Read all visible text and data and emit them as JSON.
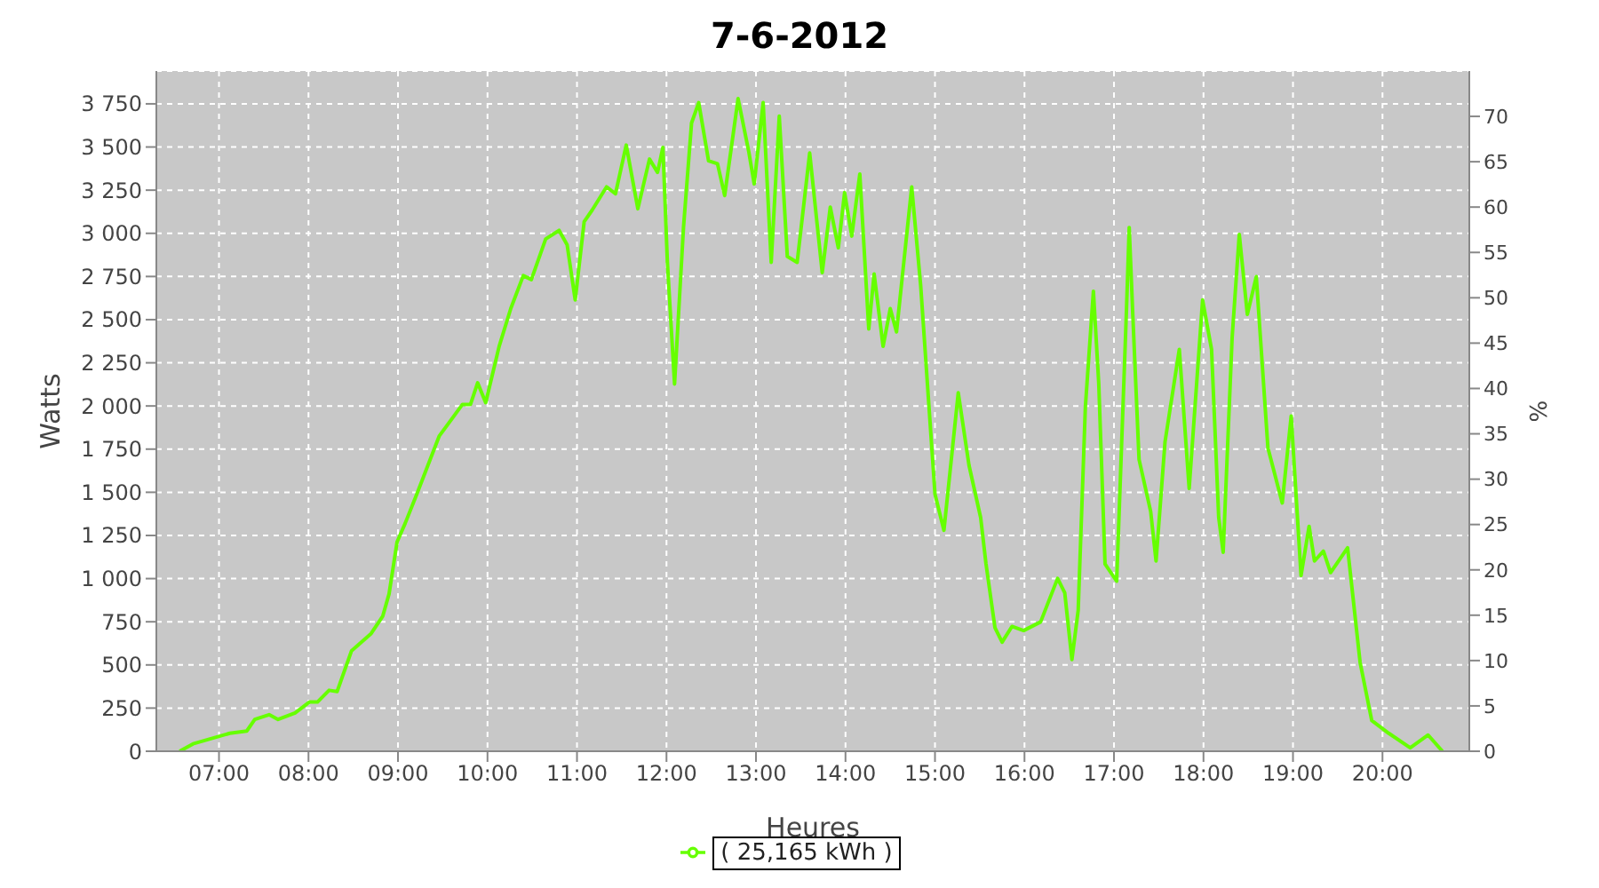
{
  "chart_data": {
    "type": "line",
    "title": "7-6-2012",
    "xlabel": "Heures",
    "ylabel": "Watts",
    "y2label": "%",
    "xlim": [
      6.3,
      20.97
    ],
    "ylim": [
      0,
      3940
    ],
    "y2lim": [
      0,
      75
    ],
    "xticks": [
      {
        "value": 7,
        "label": "07:00"
      },
      {
        "value": 8,
        "label": "08:00"
      },
      {
        "value": 9,
        "label": "09:00"
      },
      {
        "value": 10,
        "label": "10:00"
      },
      {
        "value": 11,
        "label": "11:00"
      },
      {
        "value": 12,
        "label": "12:00"
      },
      {
        "value": 13,
        "label": "13:00"
      },
      {
        "value": 14,
        "label": "14:00"
      },
      {
        "value": 15,
        "label": "15:00"
      },
      {
        "value": 16,
        "label": "16:00"
      },
      {
        "value": 17,
        "label": "17:00"
      },
      {
        "value": 18,
        "label": "18:00"
      },
      {
        "value": 19,
        "label": "19:00"
      },
      {
        "value": 20,
        "label": "20:00"
      }
    ],
    "yticks": [
      0,
      250,
      500,
      750,
      {
        "value": 1000,
        "label": "1 000"
      },
      {
        "value": 1250,
        "label": "1 250"
      },
      {
        "value": 1500,
        "label": "1 500"
      },
      {
        "value": 1750,
        "label": "1 750"
      },
      {
        "value": 2000,
        "label": "2 000"
      },
      {
        "value": 2250,
        "label": "2 250"
      },
      {
        "value": 2500,
        "label": "2 500"
      },
      {
        "value": 2750,
        "label": "2 750"
      },
      {
        "value": 3000,
        "label": "3 000"
      },
      {
        "value": 3250,
        "label": "3 250"
      },
      {
        "value": 3500,
        "label": "3 500"
      },
      {
        "value": 3750,
        "label": "3 750"
      }
    ],
    "y2ticks": [
      0,
      5,
      10,
      15,
      20,
      25,
      30,
      35,
      40,
      45,
      50,
      55,
      60,
      65,
      70
    ],
    "grid": true,
    "legend": "bottom",
    "marker": "none",
    "line_style": "solid",
    "series": [
      {
        "name": "( 25,165 kWh )",
        "color": "#66ff00",
        "x": [
          6.56,
          6.71,
          6.9,
          7.12,
          7.31,
          7.4,
          7.56,
          7.66,
          7.85,
          8.01,
          8.1,
          8.23,
          8.32,
          8.48,
          8.7,
          8.83,
          8.9,
          8.99,
          9.08,
          9.21,
          9.46,
          9.72,
          9.81,
          9.89,
          9.98,
          10.13,
          10.26,
          10.4,
          10.49,
          10.65,
          10.8,
          10.89,
          10.98,
          11.08,
          11.17,
          11.33,
          11.43,
          11.55,
          11.68,
          11.81,
          11.9,
          11.96,
          12.01,
          12.09,
          12.19,
          12.28,
          12.36,
          12.47,
          12.57,
          12.65,
          12.8,
          12.92,
          12.98,
          13.08,
          13.17,
          13.26,
          13.35,
          13.46,
          13.6,
          13.74,
          13.83,
          13.92,
          13.99,
          14.07,
          14.16,
          14.26,
          14.32,
          14.42,
          14.5,
          14.57,
          14.74,
          14.84,
          15.0,
          15.1,
          15.26,
          15.38,
          15.51,
          15.57,
          15.67,
          15.75,
          15.86,
          15.99,
          16.18,
          16.37,
          16.45,
          16.53,
          16.6,
          16.68,
          16.77,
          16.83,
          16.9,
          17.03,
          17.14,
          17.17,
          17.21,
          17.28,
          17.41,
          17.47,
          17.57,
          17.73,
          17.84,
          17.99,
          18.09,
          18.17,
          18.22,
          18.32,
          18.4,
          18.49,
          18.59,
          18.72,
          18.88,
          18.98,
          19.09,
          19.18,
          19.24,
          19.34,
          19.42,
          19.61,
          19.75,
          19.88,
          20.07,
          20.31,
          20.51,
          20.67
        ],
        "values": [
          0,
          43,
          71,
          104,
          117,
          184,
          212,
          184,
          222,
          285,
          285,
          353,
          346,
          581,
          682,
          783,
          911,
          1213,
          1320,
          1489,
          1825,
          2009,
          2009,
          2134,
          2019,
          2345,
          2564,
          2755,
          2732,
          2967,
          3017,
          2933,
          2614,
          3067,
          3135,
          3269,
          3229,
          3511,
          3142,
          3430,
          3353,
          3498,
          2832,
          2127,
          3034,
          3639,
          3757,
          3420,
          3403,
          3219,
          3780,
          3471,
          3286,
          3757,
          2832,
          3679,
          2866,
          2832,
          3465,
          2772,
          3152,
          2916,
          3236,
          2984,
          3343,
          2446,
          2765,
          2345,
          2564,
          2429,
          3269,
          2698,
          1489,
          1280,
          2077,
          1656,
          1354,
          1085,
          716,
          632,
          723,
          699,
          749,
          1001,
          917,
          531,
          816,
          1993,
          2665,
          2127,
          1085,
          985,
          2564,
          3034,
          2530,
          1690,
          1388,
          1102,
          1791,
          2328,
          1522,
          2614,
          2328,
          1354,
          1152,
          2396,
          2994,
          2530,
          2749,
          1757,
          1438,
          1942,
          1018,
          1303,
          1102,
          1159,
          1035,
          1179,
          514,
          178,
          104,
          20,
          94,
          0
        ]
      }
    ]
  }
}
